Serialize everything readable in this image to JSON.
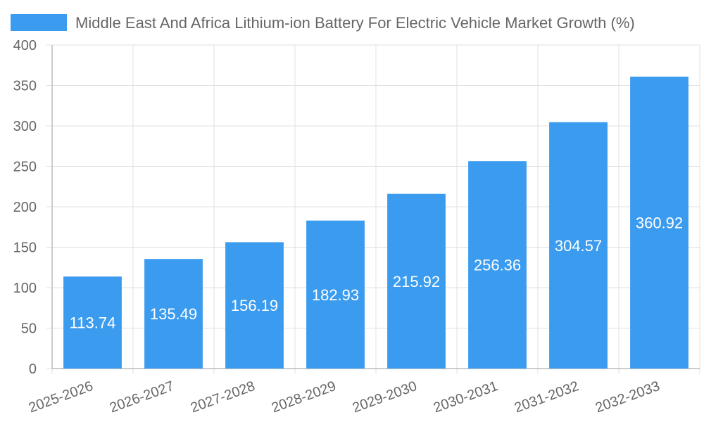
{
  "chart_data": {
    "type": "bar",
    "categories": [
      "2025-2026",
      "2026-2027",
      "2027-2028",
      "2028-2029",
      "2029-2030",
      "2030-2031",
      "2031-2032",
      "2032-2033"
    ],
    "series": [
      {
        "name": "Middle East And Africa Lithium-ion Battery For Electric Vehicle Market Growth (%)",
        "values": [
          113.74,
          135.49,
          156.19,
          182.93,
          215.92,
          256.36,
          304.57,
          360.92
        ],
        "labels": [
          "113.74",
          "135.49",
          "156.19",
          "182.93",
          "215.92",
          "256.36",
          "304.57",
          "360.92"
        ]
      }
    ],
    "ylim": [
      0,
      400
    ],
    "yticks": [
      0,
      50,
      100,
      150,
      200,
      250,
      300,
      350,
      400
    ],
    "ytick_labels": [
      "0",
      "50",
      "100",
      "150",
      "200",
      "250",
      "300",
      "350",
      "400"
    ],
    "grid": true,
    "legend": "top",
    "colors": {
      "bar": "#3a9bef"
    }
  }
}
